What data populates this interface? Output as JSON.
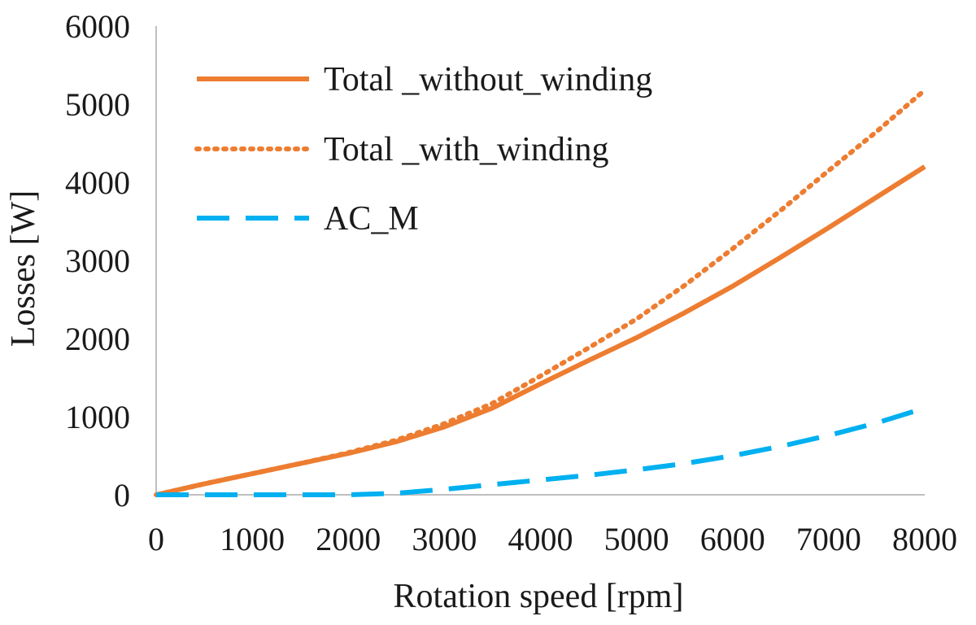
{
  "chart_data": {
    "type": "line",
    "xlabel": "Rotation speed [rpm]",
    "ylabel": "Losses [W]",
    "xlim": [
      0,
      8000
    ],
    "ylim": [
      0,
      6000
    ],
    "x_ticks": [
      "0",
      "1000",
      "2000",
      "3000",
      "4000",
      "5000",
      "6000",
      "7000",
      "8000"
    ],
    "y_ticks": [
      "0",
      "1000",
      "2000",
      "3000",
      "4000",
      "5000",
      "6000"
    ],
    "grid": false,
    "legend_position": "top-left",
    "x": [
      0,
      500,
      1000,
      1500,
      2000,
      2500,
      3000,
      3500,
      4000,
      4500,
      5000,
      5500,
      6000,
      6500,
      7000,
      7500,
      8000
    ],
    "series": [
      {
        "name": "Total _without_winding",
        "style": "solid",
        "color": "#ED7D31",
        "values": [
          0,
          140,
          270,
          400,
          530,
          680,
          870,
          1110,
          1420,
          1720,
          2010,
          2330,
          2670,
          3040,
          3420,
          3810,
          4200
        ]
      },
      {
        "name": "Total _with_winding",
        "style": "dotted",
        "color": "#ED7D31",
        "values": [
          0,
          140,
          270,
          400,
          540,
          700,
          910,
          1170,
          1520,
          1880,
          2250,
          2680,
          3150,
          3640,
          4150,
          4650,
          5180
        ]
      },
      {
        "name": "AC_M",
        "style": "dashed",
        "color": "#00B0F0",
        "values": [
          0,
          0,
          0,
          0,
          0,
          20,
          70,
          130,
          190,
          250,
          320,
          400,
          500,
          620,
          760,
          920,
          1110
        ]
      }
    ]
  }
}
